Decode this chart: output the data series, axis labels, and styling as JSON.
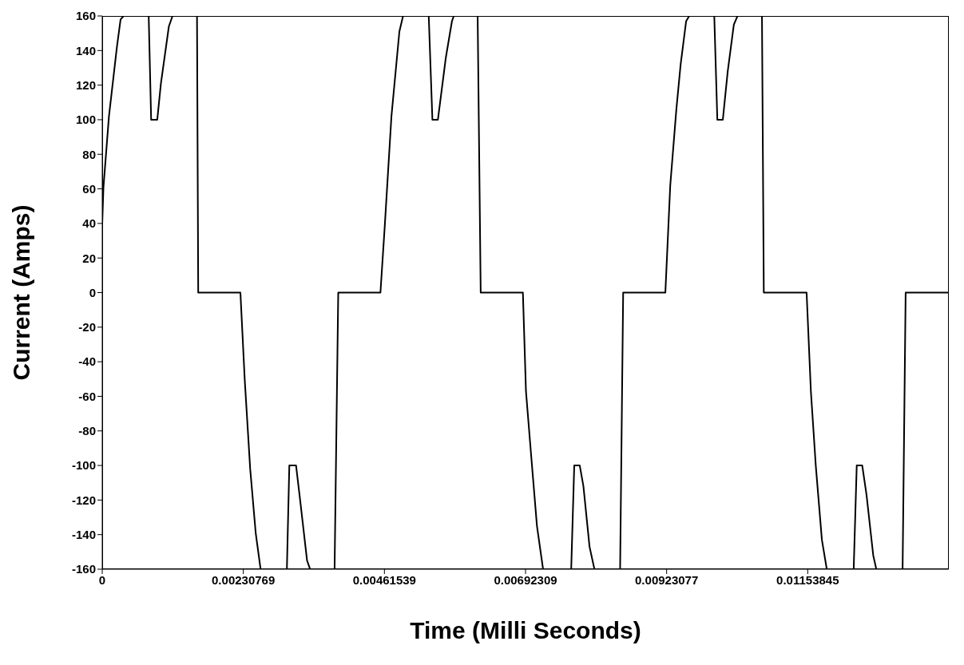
{
  "chart_data": {
    "type": "line",
    "xlabel": "Time (Milli Seconds)",
    "ylabel": "Current (Amps)",
    "x": [
      0,
      2e-05,
      0.00011,
      0.00024,
      0.0003,
      0.00035,
      0.00076,
      0.0008,
      0.0009,
      0.00096,
      0.00109,
      0.00115,
      0.00155,
      0.00157,
      0.00226,
      0.00233,
      0.00242,
      0.00251,
      0.00259,
      0.00302,
      0.00306,
      0.00317,
      0.00324,
      0.00335,
      0.0034,
      0.0038,
      0.00386,
      0.00455,
      0.00462,
      0.00473,
      0.00486,
      0.00492,
      0.00534,
      0.0054,
      0.00549,
      0.00562,
      0.00572,
      0.00575,
      0.00614,
      0.00619,
      0.00688,
      0.00693,
      0.00701,
      0.00711,
      0.00721,
      0.00767,
      0.00772,
      0.00781,
      0.00787,
      0.00797,
      0.00805,
      0.00847,
      0.00852,
      0.00921,
      0.00929,
      0.00939,
      0.00946,
      0.00955,
      0.0096,
      0.01001,
      0.01006,
      0.01015,
      0.01023,
      0.01033,
      0.01039,
      0.01079,
      0.01082,
      0.01152,
      0.01159,
      0.01167,
      0.01177,
      0.01185,
      0.01229,
      0.01234,
      0.01243,
      0.0125,
      0.01261,
      0.01266,
      0.01309,
      0.01314,
      0.01384
    ],
    "series": [
      {
        "color": "#000000",
        "values": [
          40,
          61,
          102,
          142,
          158,
          160,
          160,
          100,
          100,
          121,
          154,
          160,
          160,
          0,
          0,
          -50,
          -102,
          -139,
          -160,
          -160,
          -100,
          -100,
          -121,
          -155,
          -160,
          -160,
          0,
          0,
          38,
          102,
          151,
          160,
          160,
          100,
          100,
          136,
          157,
          160,
          160,
          0,
          0,
          -57,
          -92,
          -135,
          -160,
          -160,
          -100,
          -100,
          -112,
          -147,
          -160,
          -160,
          0,
          0,
          62,
          106,
          132,
          157,
          160,
          160,
          100,
          100,
          128,
          155,
          160,
          160,
          0,
          0,
          -57,
          -100,
          -143,
          -160,
          -160,
          -100,
          -100,
          -117,
          -152,
          -160,
          -160,
          0,
          0
        ]
      }
    ],
    "xlim": [
      0,
      0.0138461
    ],
    "xticks": [
      0,
      0.00230769,
      0.00461539,
      0.00692309,
      0.00923077,
      0.01153845
    ],
    "ylim": [
      -160,
      160
    ],
    "yticks": [
      160,
      140,
      120,
      100,
      80,
      60,
      40,
      20,
      0,
      -20,
      -40,
      -60,
      -80,
      -100,
      -120,
      -140,
      -160
    ],
    "grid": false,
    "legend": false
  }
}
